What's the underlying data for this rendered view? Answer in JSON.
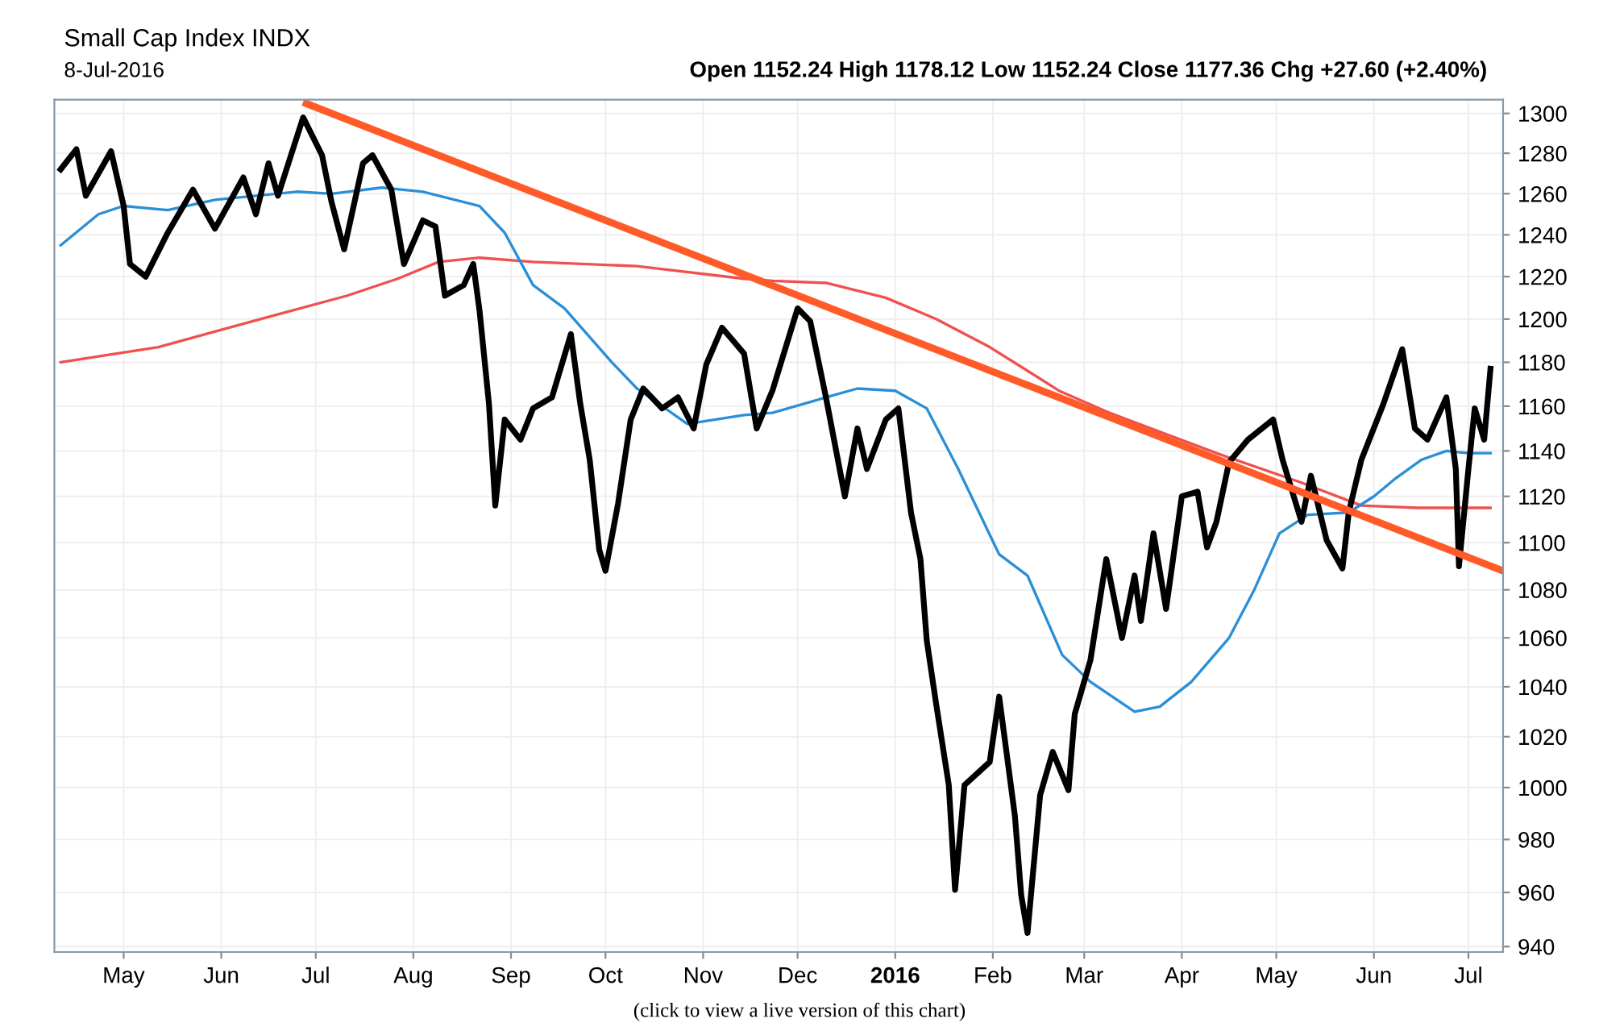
{
  "chart_data": {
    "type": "line",
    "title": "Small Cap Index INDX",
    "annotations": [
      "8-Jul-2016",
      "Open 1152.24 High 1178.12 Low 1152.24 Close 1177.36 Chg +27.60 (+2.40%)",
      "(click to view a live version of this chart)"
    ],
    "log": "y",
    "grid": true,
    "marker": "none",
    "line_style": "solid",
    "xlim": [
      "2015-04-09",
      "2016-07-12"
    ],
    "ylim": [
      938,
      1307
    ],
    "xticks": [
      {
        "value": "2015-05-01",
        "label": "May"
      },
      {
        "value": "2015-06-01",
        "label": "Jun"
      },
      {
        "value": "2015-07-01",
        "label": "Jul"
      },
      {
        "value": "2015-08-01",
        "label": "Aug"
      },
      {
        "value": "2015-09-01",
        "label": "Sep"
      },
      {
        "value": "2015-10-01",
        "label": "Oct"
      },
      {
        "value": "2015-11-01",
        "label": "Nov"
      },
      {
        "value": "2015-12-01",
        "label": "Dec"
      },
      {
        "value": "2016-01-01",
        "label": "2016"
      },
      {
        "value": "2016-02-01",
        "label": "Feb"
      },
      {
        "value": "2016-03-01",
        "label": "Mar"
      },
      {
        "value": "2016-04-01",
        "label": "Apr"
      },
      {
        "value": "2016-05-01",
        "label": "May"
      },
      {
        "value": "2016-06-01",
        "label": "Jun"
      },
      {
        "value": "2016-07-01",
        "label": "Jul"
      }
    ],
    "yticks": [
      940,
      960,
      980,
      1000,
      1020,
      1040,
      1060,
      1080,
      1100,
      1120,
      1140,
      1160,
      1180,
      1200,
      1220,
      1240,
      1260,
      1280,
      1300
    ],
    "series": [
      {
        "color": "#f05050",
        "x": [
          "2015-04-11",
          "2015-05-12",
          "2015-06-16",
          "2015-07-11",
          "2015-07-27",
          "2015-08-09",
          "2015-08-22",
          "2015-09-08",
          "2015-10-11",
          "2015-11-14",
          "2015-11-23",
          "2015-12-10",
          "2015-12-29",
          "2016-01-14",
          "2016-01-31",
          "2016-02-11",
          "2016-02-22",
          "2016-03-09",
          "2016-04-12",
          "2016-05-09",
          "2016-05-28",
          "2016-06-15",
          "2016-07-08"
        ],
        "values": [
          1180,
          1187,
          1201,
          1211,
          1219,
          1227,
          1229,
          1227,
          1225,
          1219,
          1218,
          1217,
          1210,
          1200,
          1187,
          1177,
          1167,
          1157,
          1139,
          1126,
          1116,
          1115,
          1115
        ]
      },
      {
        "color": "#2a8fd6",
        "x": [
          "2015-04-11",
          "2015-04-23",
          "2015-05-01",
          "2015-05-15",
          "2015-05-30",
          "2015-06-25",
          "2015-07-06",
          "2015-07-22",
          "2015-08-04",
          "2015-08-22",
          "2015-08-30",
          "2015-09-08",
          "2015-09-18",
          "2015-10-03",
          "2015-10-11",
          "2015-10-27",
          "2015-11-14",
          "2015-11-23",
          "2015-12-10",
          "2015-12-20",
          "2016-01-01",
          "2016-01-11",
          "2016-01-21",
          "2016-02-03",
          "2016-02-12",
          "2016-02-23",
          "2016-03-03",
          "2016-03-17",
          "2016-03-25",
          "2016-04-04",
          "2016-04-16",
          "2016-04-24",
          "2016-05-02",
          "2016-05-11",
          "2016-05-24",
          "2016-06-01",
          "2016-06-08",
          "2016-06-16",
          "2016-06-24",
          "2016-07-01",
          "2016-07-08"
        ],
        "values": [
          1235,
          1250,
          1254,
          1252,
          1257,
          1261,
          1260,
          1263,
          1261,
          1254,
          1241,
          1216,
          1205,
          1180,
          1168,
          1152,
          1156,
          1157,
          1164,
          1168,
          1167,
          1159,
          1132,
          1095,
          1086,
          1053,
          1042,
          1030,
          1032,
          1042,
          1060,
          1080,
          1104,
          1112,
          1113,
          1120,
          1128,
          1136,
          1140,
          1139,
          1139
        ]
      },
      {
        "color": "#000000",
        "x": [
          "2015-04-11",
          "2015-04-16",
          "2015-04-19",
          "2015-04-27",
          "2015-05-01",
          "2015-05-03",
          "2015-05-08",
          "2015-05-15",
          "2015-05-23",
          "2015-05-30",
          "2015-06-08",
          "2015-06-12",
          "2015-06-16",
          "2015-06-19",
          "2015-06-27",
          "2015-07-03",
          "2015-07-06",
          "2015-07-10",
          "2015-07-16",
          "2015-07-19",
          "2015-07-25",
          "2015-07-29",
          "2015-08-04",
          "2015-08-08",
          "2015-08-11",
          "2015-08-17",
          "2015-08-20",
          "2015-08-22",
          "2015-08-25",
          "2015-08-27",
          "2015-08-30",
          "2015-09-04",
          "2015-09-08",
          "2015-09-14",
          "2015-09-20",
          "2015-09-23",
          "2015-09-26",
          "2015-09-29",
          "2015-10-01",
          "2015-10-05",
          "2015-10-09",
          "2015-10-13",
          "2015-10-19",
          "2015-10-24",
          "2015-10-29",
          "2015-11-02",
          "2015-11-07",
          "2015-11-14",
          "2015-11-18",
          "2015-11-23",
          "2015-12-01",
          "2015-12-05",
          "2015-12-10",
          "2015-12-16",
          "2015-12-20",
          "2015-12-23",
          "2015-12-29",
          "2016-01-02",
          "2016-01-04",
          "2016-01-06",
          "2016-01-09",
          "2016-01-11",
          "2016-01-14",
          "2016-01-18",
          "2016-01-20",
          "2016-01-23",
          "2016-01-31",
          "2016-02-03",
          "2016-02-08",
          "2016-02-10",
          "2016-02-12",
          "2016-02-16",
          "2016-02-20",
          "2016-02-25",
          "2016-02-27",
          "2016-03-03",
          "2016-03-08",
          "2016-03-13",
          "2016-03-17",
          "2016-03-19",
          "2016-03-23",
          "2016-03-27",
          "2016-04-01",
          "2016-04-06",
          "2016-04-09",
          "2016-04-12",
          "2016-04-16",
          "2016-04-22",
          "2016-04-30",
          "2016-05-03",
          "2016-05-09",
          "2016-05-12",
          "2016-05-17",
          "2016-05-22",
          "2016-05-24",
          "2016-05-28",
          "2016-06-04",
          "2016-06-10",
          "2016-06-14",
          "2016-06-18",
          "2016-06-24",
          "2016-06-27",
          "2016-06-28",
          "2016-07-01",
          "2016-07-03",
          "2016-07-06",
          "2016-07-08"
        ],
        "values": [
          1272,
          1282,
          1259,
          1281,
          1254,
          1226,
          1220,
          1241,
          1262,
          1243,
          1268,
          1250,
          1275,
          1259,
          1298,
          1279,
          1256,
          1233,
          1275,
          1279,
          1262,
          1226,
          1247,
          1244,
          1211,
          1216,
          1226,
          1204,
          1161,
          1116,
          1154,
          1145,
          1159,
          1164,
          1193,
          1161,
          1136,
          1097,
          1088,
          1117,
          1154,
          1168,
          1159,
          1164,
          1150,
          1179,
          1196,
          1184,
          1150,
          1167,
          1205,
          1199,
          1164,
          1120,
          1150,
          1132,
          1154,
          1159,
          1136,
          1113,
          1093,
          1059,
          1033,
          1001,
          961,
          1001,
          1010,
          1036,
          989,
          959,
          945,
          997,
          1014,
          999,
          1029,
          1051,
          1093,
          1060,
          1086,
          1067,
          1104,
          1072,
          1120,
          1122,
          1098,
          1109,
          1135,
          1145,
          1154,
          1136,
          1109,
          1129,
          1101,
          1089,
          1113,
          1136,
          1161,
          1186,
          1150,
          1145,
          1164,
          1132,
          1090,
          1132,
          1159,
          1145,
          1177
        ]
      },
      {
        "color": "#ff5a28",
        "x": [
          "2015-06-28",
          "2016-07-12"
        ],
        "values": [
          1305,
          1088
        ]
      }
    ]
  }
}
